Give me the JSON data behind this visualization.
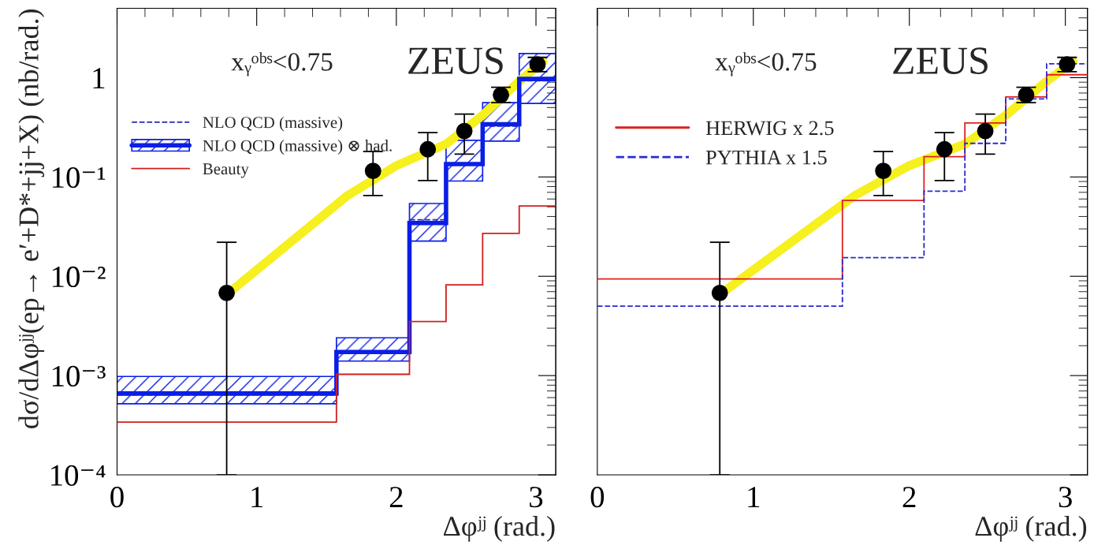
{
  "chart_data": [
    {
      "type": "histogram",
      "xlabel": "Δφʲʲ (rad.)",
      "ylabel": "dσ/dΔφʲʲ(ep→ e′+D*+jj+X) (nb/rad.)",
      "bins": [
        0,
        1.571,
        2.094,
        2.356,
        2.618,
        2.88,
        3.1416
      ],
      "xlim": [
        0,
        3.1416
      ],
      "xticks": [
        0,
        1,
        2,
        3
      ],
      "ylim": [
        0.0001,
        5
      ],
      "yticks": [
        {
          "value": 0.0001,
          "label": "10⁻⁴"
        },
        {
          "value": 0.001,
          "label": "10⁻³"
        },
        {
          "value": 0.01,
          "label": "10⁻²"
        },
        {
          "value": 0.1,
          "label": "10⁻¹"
        },
        1
      ],
      "log": "y",
      "grid": false,
      "legend": "top left",
      "annotations": [
        "xᵧᵒᵇˢ<0.75",
        "ZEUS"
      ],
      "series": [
        {
          "name": "NLO QCD (massive)",
          "color": "#2a2ab0",
          "line_style": "dashed",
          "values": [
            0.00064,
            0.0017,
            0.037,
            0.135,
            0.325,
            0.93
          ]
        },
        {
          "name": "NLO QCD (massive) ⊗ had.",
          "color": "#0a1ee6",
          "values": [
            0.00066,
            0.00173,
            0.0344,
            0.135,
            0.34,
            0.97
          ]
        },
        {
          "color": "#0a1ee6",
          "base": [
            0.00052,
            0.0014,
            0.0226,
            0.091,
            0.23,
            0.55
          ],
          "values": [
            0.00046,
            0.001,
            0.0314,
            0.143,
            0.33,
            1.2
          ]
        },
        {
          "name": "Beauty",
          "color": "#d02020",
          "values": [
            0.00034,
            0.00103,
            0.0035,
            0.0082,
            0.027,
            0.051
          ]
        },
        {
          "type": "line",
          "color": "#f5f01e",
          "x": [
            0.8,
            1.65,
            2.0,
            2.36,
            2.62,
            2.88,
            3.05
          ],
          "values": [
            0.0068,
            0.065,
            0.13,
            0.216,
            0.42,
            0.92,
            1.45
          ]
        },
        {
          "type": "scatter",
          "color": "#000000",
          "marker": "circle",
          "x": [
            0.785,
            1.833,
            2.225,
            2.487,
            2.749,
            3.011
          ],
          "values": [
            0.0068,
            0.115,
            0.19,
            0.29,
            0.67,
            1.36
          ],
          "errors": [
            [
              0.0001,
              0.022
            ],
            [
              0.065,
              0.18
            ],
            [
              0.092,
              0.28
            ],
            [
              0.17,
              0.43
            ],
            [
              0.56,
              0.8
            ],
            [
              1.15,
              1.6
            ]
          ]
        }
      ]
    },
    {
      "type": "histogram",
      "xlabel": "Δφʲʲ (rad.)",
      "bins": [
        0,
        1.571,
        2.094,
        2.356,
        2.618,
        2.88,
        3.1416
      ],
      "xlim": [
        0,
        3.1416
      ],
      "xticks": [
        0,
        1,
        2,
        3
      ],
      "ylim": [
        0.0001,
        5
      ],
      "yticks": [
        {
          "value": 0.0001,
          "label": null
        },
        {
          "value": 0.001,
          "label": null
        },
        {
          "value": 0.01,
          "label": null
        },
        {
          "value": 0.1,
          "label": null
        },
        {
          "value": 1,
          "label": null
        }
      ],
      "log": "y",
      "grid": false,
      "legend": "top left",
      "tick_labels": "x",
      "annotations": [
        "xᵧᵒᵇˢ<0.75",
        "ZEUS"
      ],
      "series": [
        {
          "name": "HERWIG x 2.5",
          "color": "#e02020",
          "values": [
            0.0094,
            0.058,
            0.16,
            0.35,
            0.64,
            1.07
          ]
        },
        {
          "name": "PYTHIA x 1.5",
          "color": "#2a2ad0",
          "line_style": "dashed",
          "values": [
            0.005,
            0.0154,
            0.072,
            0.218,
            0.61,
            1.38
          ]
        },
        {
          "type": "line",
          "color": "#f5f01e",
          "x": [
            0.8,
            1.65,
            2.0,
            2.36,
            2.62,
            2.88,
            3.05
          ],
          "values": [
            0.0068,
            0.065,
            0.13,
            0.216,
            0.42,
            0.92,
            1.45
          ]
        },
        {
          "type": "scatter",
          "color": "#000000",
          "marker": "circle",
          "x": [
            0.785,
            1.833,
            2.225,
            2.487,
            2.749,
            3.011
          ],
          "values": [
            0.0068,
            0.115,
            0.19,
            0.29,
            0.67,
            1.36
          ],
          "errors": [
            [
              0.0001,
              0.022
            ],
            [
              0.065,
              0.18
            ],
            [
              0.092,
              0.28
            ],
            [
              0.17,
              0.43
            ],
            [
              0.56,
              0.8
            ],
            [
              1.15,
              1.6
            ]
          ]
        }
      ]
    }
  ]
}
